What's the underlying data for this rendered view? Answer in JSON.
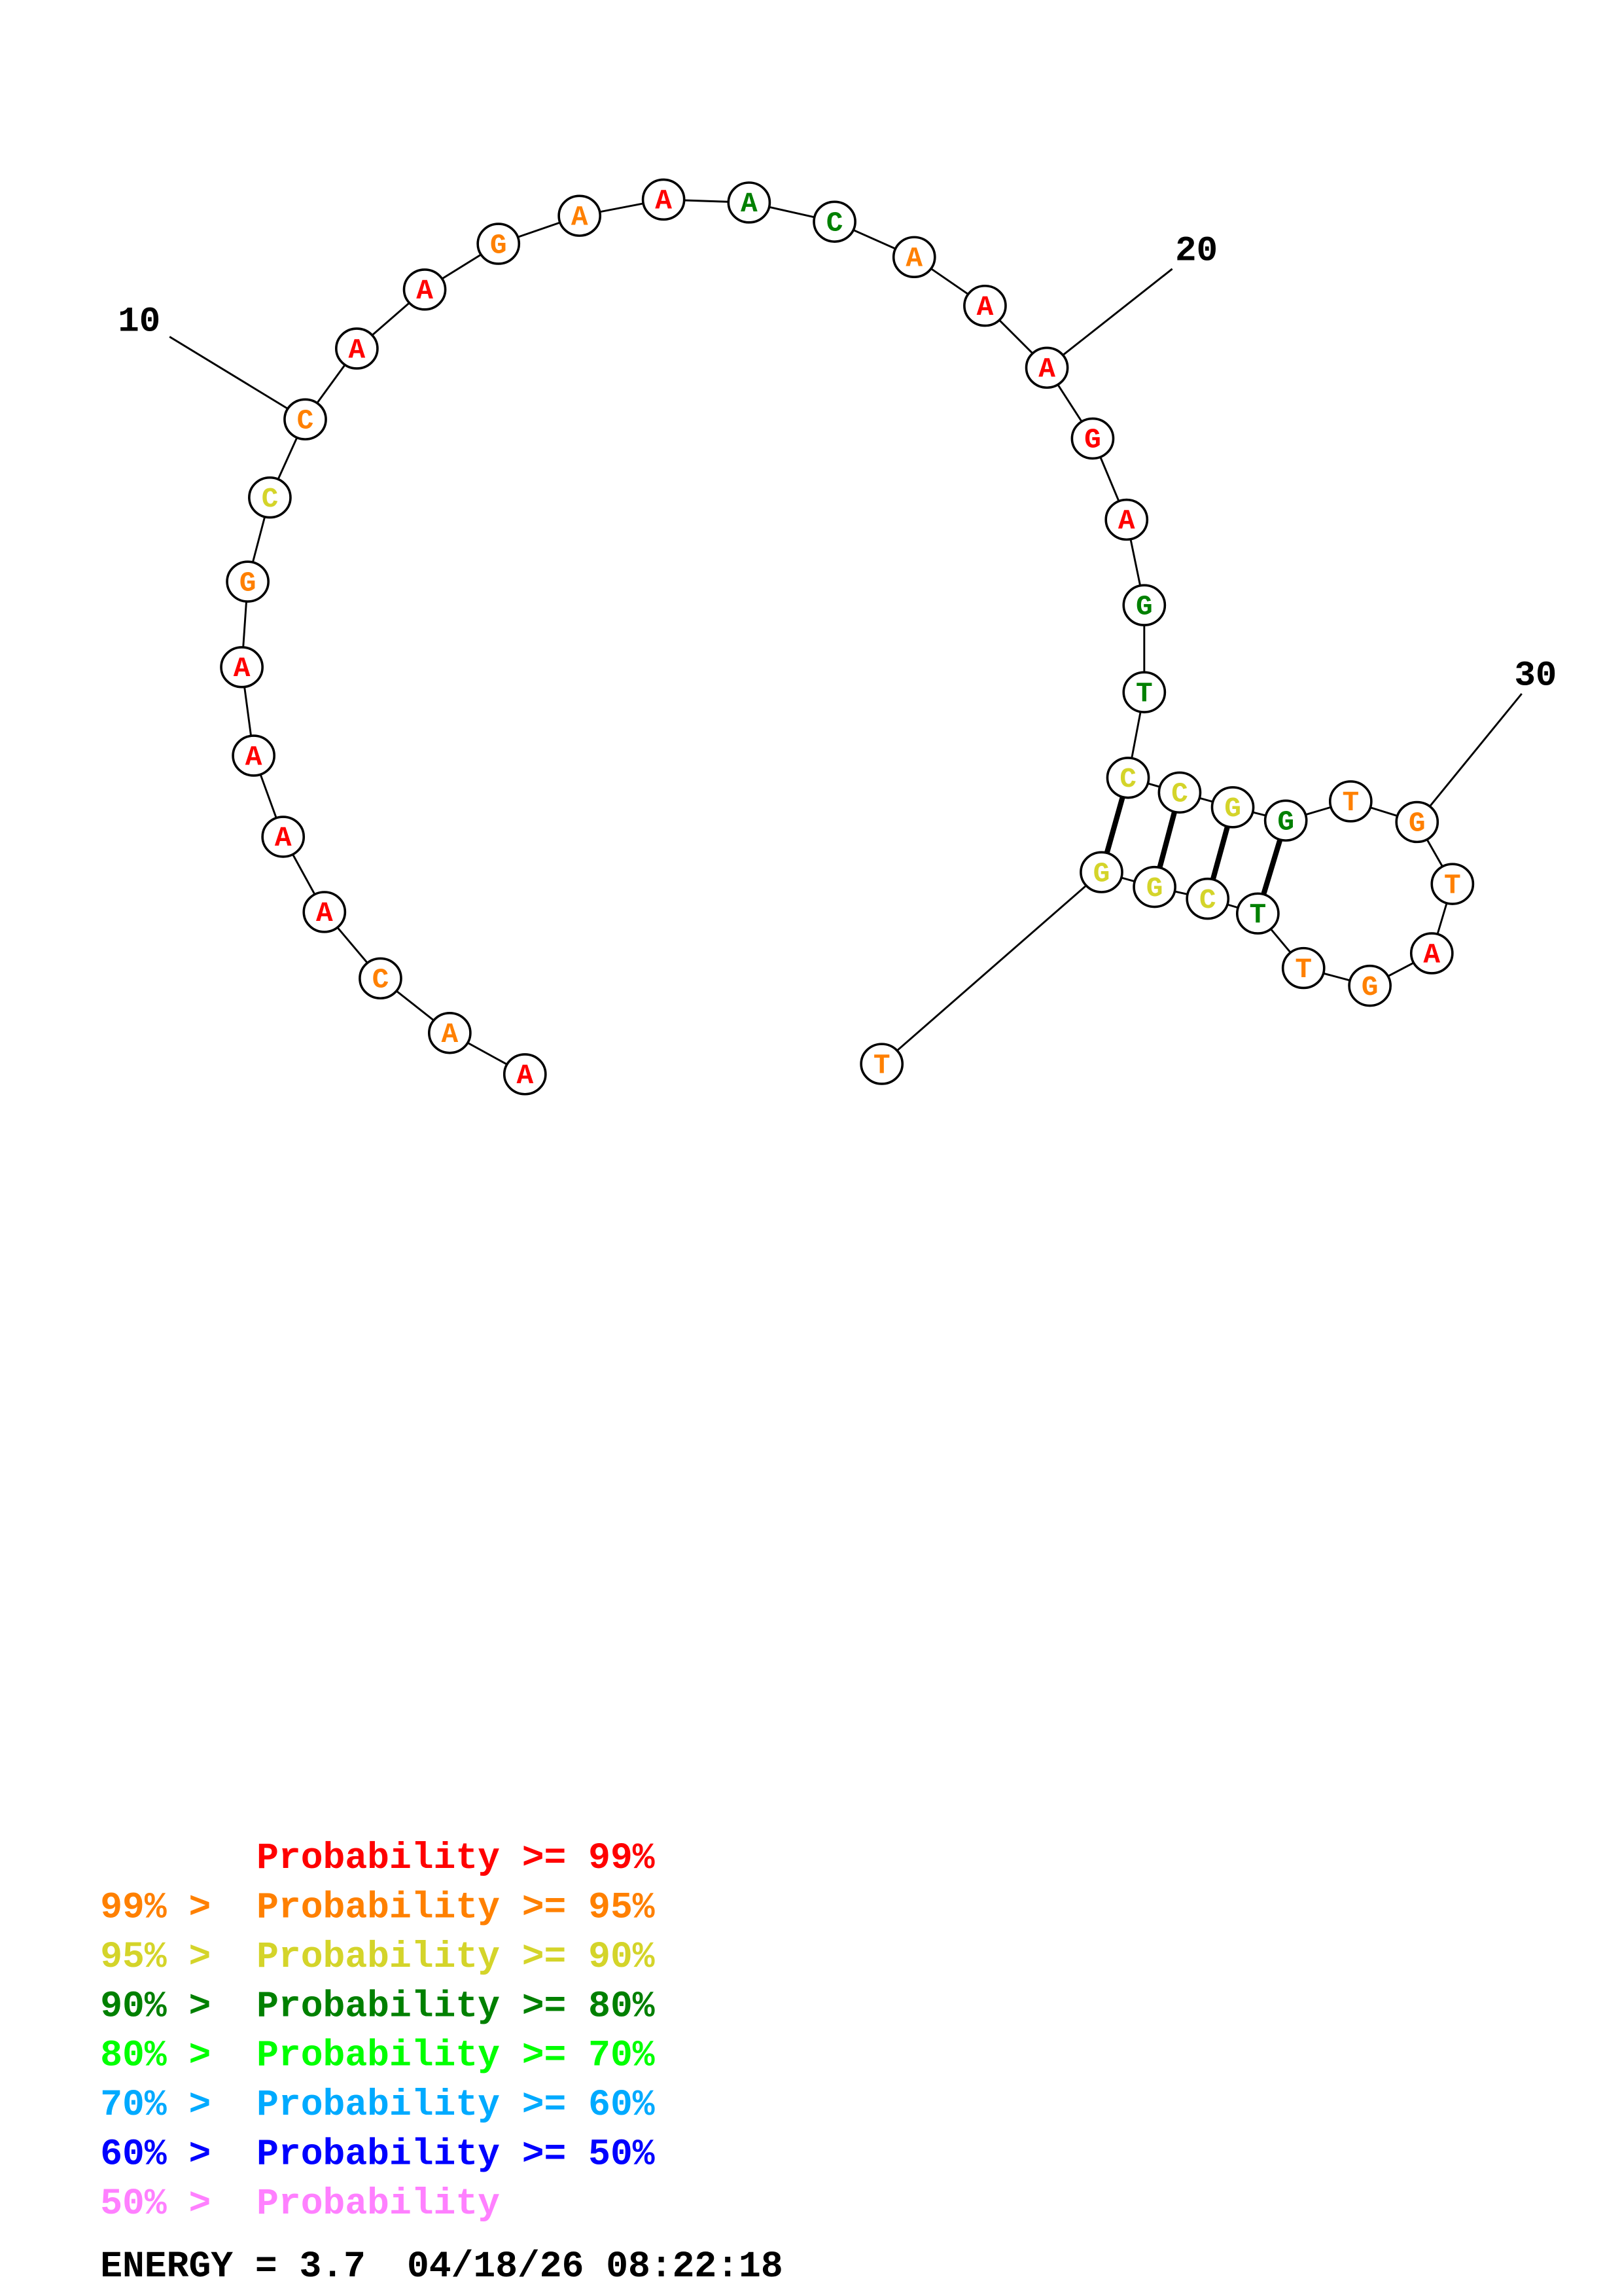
{
  "colors": {
    "p99": "#ff0000",
    "p95": "#ff8000",
    "p90": "#d4d42a",
    "p80": "#008000",
    "p70": "#00ff00",
    "p60": "#00aaff",
    "p50": "#0000ff",
    "plow": "#ff80ff"
  },
  "structure": {
    "sequence": [
      "A",
      "A",
      "C",
      "A",
      "A",
      "A",
      "A",
      "G",
      "C",
      "C",
      "A",
      "A",
      "G",
      "A",
      "A",
      "A",
      "C",
      "A",
      "A",
      "A",
      "G",
      "A",
      "G",
      "T",
      "C",
      "C",
      "G",
      "G",
      "T",
      "G",
      "T",
      "A",
      "G",
      "T",
      "T",
      "C",
      "G",
      "G",
      "T"
    ],
    "probability_class": [
      "p99",
      "p95",
      "p95",
      "p99",
      "p99",
      "p99",
      "p99",
      "p95",
      "p90",
      "p95",
      "p99",
      "p99",
      "p95",
      "p95",
      "p99",
      "p80",
      "p80",
      "p95",
      "p99",
      "p99",
      "p99",
      "p99",
      "p80",
      "p80",
      "p90",
      "p90",
      "p90",
      "p80",
      "p95",
      "p95",
      "p95",
      "p99",
      "p95",
      "p95",
      "p80",
      "p90",
      "p90",
      "p90",
      "p95"
    ],
    "pairs": [
      [
        25,
        38
      ],
      [
        26,
        37
      ],
      [
        27,
        36
      ],
      [
        28,
        35
      ]
    ],
    "position_labels": [
      {
        "index": 10,
        "text": "10"
      },
      {
        "index": 20,
        "text": "20"
      },
      {
        "index": 30,
        "text": "30"
      }
    ]
  },
  "legend": [
    {
      "prefix": "",
      "text": "Probability >= 99%",
      "color_key": "p99"
    },
    {
      "prefix": "99% > ",
      "text": "Probability >= 95%",
      "color_key": "p95"
    },
    {
      "prefix": "95% > ",
      "text": "Probability >= 90%",
      "color_key": "p90"
    },
    {
      "prefix": "90% > ",
      "text": "Probability >= 80%",
      "color_key": "p80"
    },
    {
      "prefix": "80% > ",
      "text": "Probability >= 70%",
      "color_key": "p70"
    },
    {
      "prefix": "70% > ",
      "text": "Probability >= 60%",
      "color_key": "p60"
    },
    {
      "prefix": "60% > ",
      "text": "Probability >= 50%",
      "color_key": "p50"
    },
    {
      "prefix": "50% > ",
      "text": "Probability",
      "color_key": "plow"
    }
  ],
  "footer": {
    "energy": "ENERGY = 3.7",
    "timestamp": "04/18/26 08:22:18"
  }
}
